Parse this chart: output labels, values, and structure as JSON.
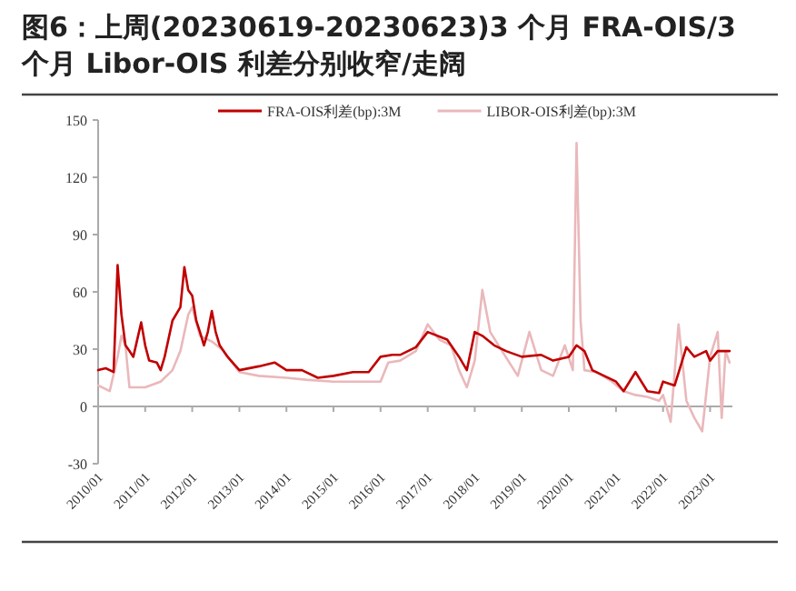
{
  "chart_data": {
    "type": "line",
    "title": "图6：上周(20230619-20230623)3 个月 FRA-OIS/3 个月 Libor-OIS 利差分别收窄/走阔",
    "x": [
      "2010-01",
      "2010-03",
      "2010-05",
      "2010-06",
      "2010-07",
      "2010-08",
      "2010-09",
      "2010-10",
      "2010-12",
      "2011-01",
      "2011-02",
      "2011-04",
      "2011-05",
      "2011-06",
      "2011-08",
      "2011-10",
      "2011-11",
      "2011-12",
      "2012-01",
      "2012-02",
      "2012-03",
      "2012-04",
      "2012-05",
      "2012-06",
      "2012-07",
      "2012-08",
      "2012-10",
      "2013-01",
      "2013-06",
      "2013-10",
      "2014-01",
      "2014-05",
      "2014-09",
      "2015-01",
      "2015-06",
      "2015-10",
      "2016-01",
      "2016-04",
      "2016-06",
      "2016-10",
      "2017-01",
      "2017-06",
      "2017-09",
      "2017-11",
      "2018-01",
      "2018-03",
      "2018-06",
      "2018-09",
      "2019-01",
      "2019-06",
      "2019-09",
      "2020-01",
      "2020-03",
      "2020-05",
      "2020-07",
      "2020-10",
      "2021-01",
      "2021-03",
      "2021-06",
      "2021-09",
      "2021-12",
      "2022-01",
      "2022-04",
      "2022-07",
      "2022-09",
      "2022-12",
      "2023-01",
      "2023-03",
      "2023-06"
    ],
    "series": [
      {
        "name": "FRA-OIS利差(bp):3M",
        "color": "#c00000",
        "values": [
          19,
          20,
          18,
          74,
          48,
          32,
          29,
          26,
          44,
          32,
          24,
          23,
          19,
          26,
          45,
          52,
          73,
          61,
          58,
          45,
          39,
          32,
          39,
          50,
          39,
          32,
          26,
          19,
          21,
          23,
          19,
          19,
          15,
          16,
          18,
          18,
          26,
          27,
          27,
          31,
          39,
          35,
          26,
          19,
          39,
          37,
          32,
          29,
          26,
          27,
          24,
          26,
          32,
          29,
          19,
          16,
          13,
          8,
          18,
          8,
          7,
          13,
          11,
          31,
          26,
          29,
          24,
          29,
          29
        ]
      },
      {
        "name": "LIBOR-OIS利差(bp):3M",
        "color": "#eab8bb",
        "x": [
          "2010-01",
          "2010-04",
          "2010-06",
          "2010-07",
          "2010-08",
          "2010-09",
          "2011-01",
          "2011-05",
          "2011-08",
          "2011-10",
          "2011-12",
          "2012-01",
          "2012-03",
          "2012-06",
          "2012-09",
          "2013-01",
          "2013-06",
          "2014-01",
          "2014-06",
          "2015-01",
          "2015-06",
          "2016-01",
          "2016-03",
          "2016-06",
          "2016-10",
          "2017-01",
          "2017-04",
          "2017-07",
          "2017-09",
          "2017-11",
          "2018-01",
          "2018-03",
          "2018-05",
          "2018-08",
          "2018-12",
          "2019-03",
          "2019-06",
          "2019-09",
          "2019-12",
          "2020-02",
          "2020-03",
          "2020-04",
          "2020-05",
          "2020-08",
          "2020-12",
          "2021-03",
          "2021-06",
          "2021-09",
          "2021-12",
          "2022-01",
          "2022-03",
          "2022-05",
          "2022-07",
          "2022-09",
          "2022-11",
          "2023-01",
          "2023-03",
          "2023-04",
          "2023-05",
          "2023-06"
        ],
        "values": [
          11,
          8,
          26,
          37,
          32,
          10,
          10,
          13,
          19,
          29,
          48,
          52,
          37,
          34,
          29,
          18,
          16,
          15,
          14,
          13,
          13,
          13,
          23,
          24,
          29,
          43,
          35,
          32,
          19,
          10,
          24,
          61,
          39,
          29,
          16,
          39,
          19,
          16,
          32,
          19,
          138,
          45,
          19,
          18,
          13,
          8,
          6,
          5,
          3,
          6,
          -8,
          43,
          3,
          -6,
          -13,
          26,
          39,
          -6,
          29,
          23
        ]
      }
    ],
    "xlim": [
      "2010-01",
      "2023-06-23"
    ],
    "xticks": [
      {
        "value": "2010-01",
        "label": "2010/01"
      },
      {
        "value": "2011-01",
        "label": "2011/01"
      },
      {
        "value": "2012-01",
        "label": "2012/01"
      },
      {
        "value": "2013-01",
        "label": "2013/01"
      },
      {
        "value": "2014-01",
        "label": "2014/01"
      },
      {
        "value": "2015-01",
        "label": "2015/01"
      },
      {
        "value": "2016-01",
        "label": "2016/01"
      },
      {
        "value": "2017-01",
        "label": "2017/01"
      },
      {
        "value": "2018-01",
        "label": "2018/01"
      },
      {
        "value": "2019-01",
        "label": "2019/01"
      },
      {
        "value": "2020-01",
        "label": "2020/01"
      },
      {
        "value": "2021-01",
        "label": "2021/01"
      },
      {
        "value": "2022-01",
        "label": "2022/01"
      },
      {
        "value": "2023-01",
        "label": "2023/01"
      }
    ],
    "ylim": [
      -30,
      150
    ],
    "yticks": [
      -30,
      0,
      30,
      60,
      90,
      120,
      150
    ],
    "legend": "top",
    "line_style": "solid",
    "marker": "none"
  }
}
